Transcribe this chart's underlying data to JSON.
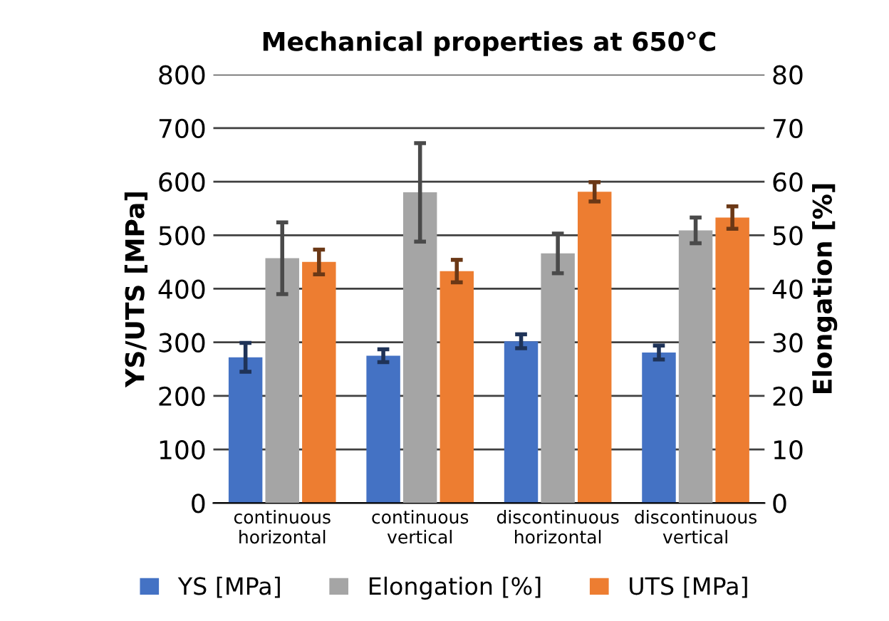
{
  "chart_data": {
    "type": "bar",
    "title": "Mechanical properties at 650°C",
    "ylabel": "YS/UTS [MPa]",
    "y2label": "Elongation [%]",
    "categories": [
      "continuous\nhorizontal",
      "continuous\nvertical",
      "discontinuous\nhorizontal",
      "discontinuous\nvertical"
    ],
    "series": [
      {
        "name": "YS [MPa]",
        "color": "#4472c4",
        "values": [
          272,
          275,
          302,
          281
        ],
        "errors": [
          27,
          12,
          13,
          13
        ]
      },
      {
        "name": "Elongation [%]",
        "color": "#a5a5a5",
        "axis": "y2",
        "values": [
          45.7,
          58,
          46.6,
          50.9
        ],
        "errors": [
          6.7,
          9.2,
          3.7,
          2.4
        ]
      },
      {
        "name": "UTS [MPa]",
        "color": "#ed7d31",
        "values": [
          450,
          433,
          581,
          533
        ],
        "errors": [
          23,
          21,
          18,
          21
        ]
      }
    ],
    "ylim": [
      0,
      800
    ],
    "yticks": [
      0,
      100,
      200,
      300,
      400,
      500,
      600,
      700,
      800
    ],
    "y2lim": [
      0,
      80
    ],
    "y2ticks": [
      0,
      10,
      20,
      30,
      40,
      50,
      60,
      70,
      80
    ],
    "grid": "y",
    "legend": "bottom"
  }
}
